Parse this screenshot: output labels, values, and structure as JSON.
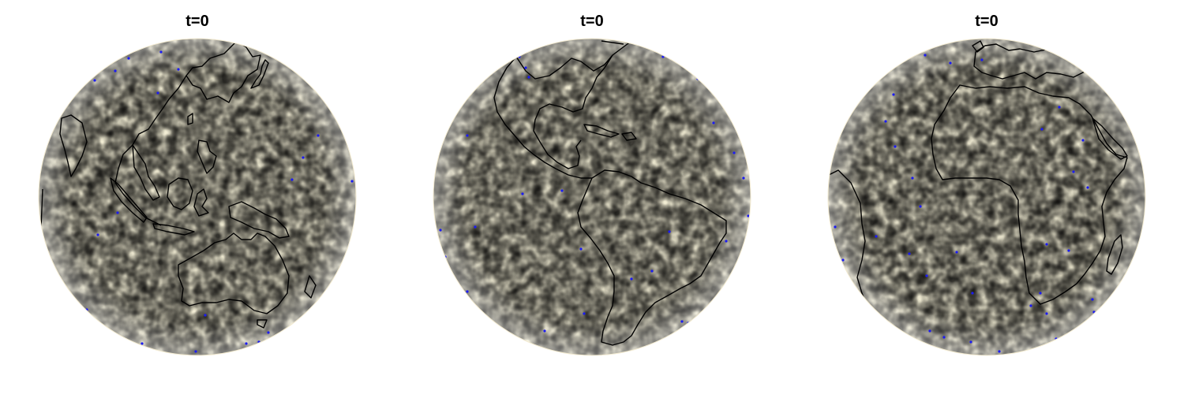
{
  "panels": [
    {
      "title": "t=0",
      "view": "asia-pacific"
    },
    {
      "title": "t=0",
      "view": "americas"
    },
    {
      "title": "t=0",
      "view": "africa"
    }
  ],
  "colors": {
    "field_low": "#3f86c4",
    "field_mid_low": "#c6e3ea",
    "field_mid": "#f8f1cf",
    "field_mid_high": "#f7c67c",
    "field_high": "#d9542a",
    "coastline": "#000000",
    "sample_points": "#1b1bf2"
  }
}
